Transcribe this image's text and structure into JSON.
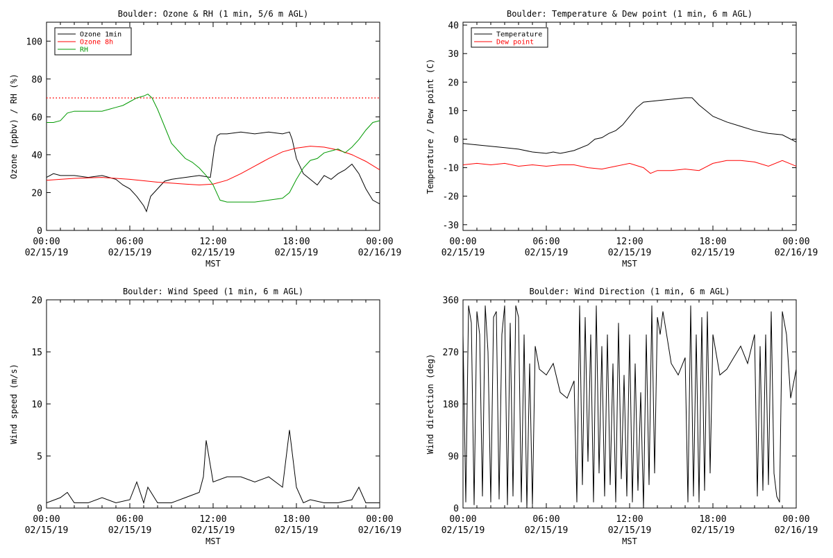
{
  "chart_data": [
    {
      "type": "line",
      "title": "Boulder: Ozone & RH (1 min, 5/6 m AGL)",
      "xlabel": "MST",
      "ylabel": "Ozone (ppbv) / RH (%)",
      "ylim": [
        0,
        110
      ],
      "yticks": [
        0,
        20,
        40,
        60,
        80,
        100
      ],
      "xlim": [
        0,
        24
      ],
      "xticks": [
        {
          "time": "00:00",
          "date": "02/15/19"
        },
        {
          "time": "06:00",
          "date": "02/15/19"
        },
        {
          "time": "12:00",
          "date": "02/15/19"
        },
        {
          "time": "18:00",
          "date": "02/15/19"
        },
        {
          "time": "00:00",
          "date": "02/16/19"
        }
      ],
      "legend_position": "top-left",
      "reference_line": {
        "y": 70,
        "color": "#ff0000",
        "style": "dotted"
      },
      "series": [
        {
          "name": "Ozone 1min",
          "color": "#000000",
          "x": [
            0,
            0.5,
            1,
            2,
            3,
            4,
            4.5,
            5,
            5.5,
            6,
            6.5,
            7,
            7.2,
            7.5,
            8,
            8.5,
            9,
            10,
            11,
            11.8,
            12.1,
            12.3,
            12.5,
            13,
            14,
            15,
            16,
            17,
            17.5,
            17.7,
            18,
            18.5,
            19,
            19.5,
            20,
            20.5,
            21,
            21.5,
            22,
            22.5,
            23,
            23.5,
            24
          ],
          "y": [
            28,
            30,
            29,
            29,
            28,
            29,
            28,
            27,
            24,
            22,
            18,
            13,
            10,
            18,
            22,
            26,
            27,
            28,
            29,
            28,
            44,
            50,
            51,
            51,
            52,
            51,
            52,
            51,
            52,
            48,
            38,
            30,
            27,
            24,
            29,
            27,
            30,
            32,
            35,
            30,
            22,
            16,
            14
          ]
        },
        {
          "name": "Ozone 8h",
          "color": "#ff0000",
          "x": [
            0,
            2,
            4,
            6,
            8,
            10,
            11,
            12,
            13,
            14,
            15,
            16,
            17,
            18,
            19,
            20,
            21,
            22,
            23,
            24
          ],
          "y": [
            26.5,
            27.5,
            28,
            27,
            25.5,
            24.5,
            24,
            24.5,
            26.5,
            30,
            34,
            38,
            41.5,
            43.5,
            44.5,
            44,
            42.5,
            40,
            36.5,
            32
          ]
        },
        {
          "name": "RH",
          "color": "#009900",
          "x": [
            0,
            0.5,
            1,
            1.5,
            2,
            3,
            4,
            4.5,
            5,
            5.5,
            6,
            6.5,
            7,
            7.3,
            7.6,
            8,
            8.5,
            9,
            9.5,
            10,
            10.5,
            11,
            11.5,
            12,
            12.5,
            13,
            14,
            15,
            16,
            17,
            17.5,
            18,
            18.5,
            19,
            19.5,
            20,
            20.5,
            21,
            21.5,
            22,
            22.5,
            23,
            23.5,
            24
          ],
          "y": [
            57,
            57,
            58,
            62,
            63,
            63,
            63,
            64,
            65,
            66,
            68,
            70,
            71,
            72,
            70,
            64,
            55,
            46,
            42,
            38,
            36,
            33,
            29,
            24,
            16,
            15,
            15,
            15,
            16,
            17,
            20,
            27,
            33,
            37,
            38,
            41,
            42,
            43,
            41,
            44,
            48,
            53,
            57,
            58
          ]
        }
      ]
    },
    {
      "type": "line",
      "title": "Boulder: Temperature & Dew point (1 min, 6 m AGL)",
      "xlabel": "MST",
      "ylabel": "Temperature / Dew point (C)",
      "ylim": [
        -32,
        41
      ],
      "yticks": [
        -30,
        -20,
        -10,
        0,
        10,
        20,
        30,
        40
      ],
      "xlim": [
        0,
        24
      ],
      "xticks": [
        {
          "time": "00:00",
          "date": "02/15/19"
        },
        {
          "time": "06:00",
          "date": "02/15/19"
        },
        {
          "time": "12:00",
          "date": "02/15/19"
        },
        {
          "time": "18:00",
          "date": "02/15/19"
        },
        {
          "time": "00:00",
          "date": "02/16/19"
        }
      ],
      "legend_position": "top-left",
      "series": [
        {
          "name": "Temperature",
          "color": "#000000",
          "x": [
            0,
            1,
            2,
            3,
            4,
            5,
            6,
            6.5,
            7,
            7.5,
            8,
            9,
            9.5,
            10,
            10.5,
            11,
            11.5,
            12,
            12.5,
            13,
            14,
            15,
            16,
            16.5,
            17,
            17.5,
            18,
            19,
            20,
            21,
            22,
            23,
            24
          ],
          "y": [
            -1.5,
            -2,
            -2.5,
            -3,
            -3.5,
            -4.5,
            -5,
            -4.5,
            -5,
            -4.5,
            -4,
            -2,
            0,
            0.5,
            2,
            3,
            5,
            8,
            11,
            13,
            13.5,
            14,
            14.5,
            14.5,
            12,
            10,
            8,
            6,
            4.5,
            3,
            2,
            1.5,
            -1
          ]
        },
        {
          "name": "Dew point",
          "color": "#ff0000",
          "x": [
            0,
            1,
            2,
            3,
            4,
            5,
            6,
            7,
            8,
            9,
            10,
            11,
            12,
            13,
            13.5,
            14,
            15,
            16,
            17,
            18,
            19,
            20,
            21,
            22,
            23,
            24
          ],
          "y": [
            -9,
            -8.5,
            -9,
            -8.5,
            -9.5,
            -9,
            -9.5,
            -9,
            -9,
            -10,
            -10.5,
            -9.5,
            -8.5,
            -10,
            -12,
            -11,
            -11,
            -10.5,
            -11,
            -8.5,
            -7.5,
            -7.5,
            -8,
            -9.5,
            -7.5,
            -9.5
          ]
        }
      ]
    },
    {
      "type": "line",
      "title": "Boulder: Wind Speed (1 min, 6 m AGL)",
      "xlabel": "MST",
      "ylabel": "Wind speed (m/s)",
      "ylim": [
        0,
        20
      ],
      "yticks": [
        0,
        5,
        10,
        15,
        20
      ],
      "xlim": [
        0,
        24
      ],
      "xticks": [
        {
          "time": "00:00",
          "date": "02/15/19"
        },
        {
          "time": "06:00",
          "date": "02/15/19"
        },
        {
          "time": "12:00",
          "date": "02/15/19"
        },
        {
          "time": "18:00",
          "date": "02/15/19"
        },
        {
          "time": "00:00",
          "date": "02/16/19"
        }
      ],
      "series": [
        {
          "name": "",
          "color": "#000000",
          "x": [
            0,
            1,
            1.5,
            2,
            3,
            4,
            5,
            6,
            6.5,
            7,
            7.3,
            8,
            9,
            10,
            11,
            11.3,
            11.5,
            12,
            13,
            14,
            15,
            16,
            17,
            17.5,
            18,
            18.5,
            19,
            20,
            21,
            22,
            22.5,
            23,
            24
          ],
          "y": [
            0.5,
            1,
            1.5,
            0.5,
            0.5,
            1,
            0.5,
            0.8,
            2.5,
            0.5,
            2,
            0.5,
            0.5,
            1,
            1.5,
            3,
            6.5,
            2.5,
            3,
            3,
            2.5,
            3,
            2,
            7.5,
            2,
            0.5,
            0.8,
            0.5,
            0.5,
            0.8,
            2,
            0.5,
            0.5
          ]
        }
      ]
    },
    {
      "type": "line",
      "title": "Boulder: Wind Direction (1 min, 6 m AGL)",
      "xlabel": "MST",
      "ylabel": "Wind direction (deg)",
      "ylim": [
        0,
        360
      ],
      "yticks": [
        0,
        90,
        180,
        270,
        360
      ],
      "xlim": [
        0,
        24
      ],
      "xticks": [
        {
          "time": "00:00",
          "date": "02/15/19"
        },
        {
          "time": "06:00",
          "date": "02/15/19"
        },
        {
          "time": "12:00",
          "date": "02/15/19"
        },
        {
          "time": "18:00",
          "date": "02/15/19"
        },
        {
          "time": "00:00",
          "date": "02/16/19"
        }
      ],
      "series": [
        {
          "name": "",
          "color": "#000000",
          "x": [
            0,
            0.2,
            0.4,
            0.6,
            0.8,
            1,
            1.2,
            1.4,
            1.6,
            1.8,
            2,
            2.2,
            2.4,
            2.6,
            2.8,
            3,
            3.2,
            3.4,
            3.6,
            3.8,
            4,
            4.2,
            4.4,
            4.6,
            4.8,
            5,
            5.2,
            5.5,
            6,
            6.5,
            7,
            7.5,
            8,
            8.2,
            8.4,
            8.6,
            8.8,
            9,
            9.2,
            9.4,
            9.6,
            9.8,
            10,
            10.2,
            10.4,
            10.6,
            10.8,
            11,
            11.2,
            11.4,
            11.6,
            11.8,
            12,
            12.2,
            12.4,
            12.6,
            12.8,
            13,
            13.2,
            13.4,
            13.6,
            13.8,
            14,
            14.2,
            14.4,
            14.6,
            14.8,
            15,
            15.5,
            16,
            16.2,
            16.4,
            16.6,
            16.8,
            17,
            17.2,
            17.4,
            17.6,
            17.8,
            18,
            18.5,
            19,
            19.5,
            20,
            20.5,
            21,
            21.2,
            21.4,
            21.6,
            21.8,
            22,
            22.2,
            22.4,
            22.6,
            22.8,
            23,
            23.3,
            23.6,
            24
          ],
          "y": [
            300,
            10,
            350,
            320,
            5,
            340,
            300,
            20,
            350,
            270,
            10,
            330,
            340,
            15,
            300,
            350,
            5,
            320,
            20,
            350,
            330,
            10,
            300,
            0,
            250,
            5,
            280,
            240,
            230,
            250,
            200,
            190,
            220,
            10,
            350,
            40,
            330,
            80,
            300,
            10,
            350,
            60,
            280,
            20,
            300,
            40,
            250,
            10,
            320,
            50,
            230,
            20,
            300,
            10,
            250,
            30,
            200,
            0,
            300,
            40,
            350,
            60,
            330,
            300,
            340,
            310,
            280,
            250,
            230,
            260,
            10,
            350,
            20,
            300,
            10,
            330,
            30,
            340,
            60,
            300,
            230,
            240,
            260,
            280,
            250,
            300,
            20,
            280,
            30,
            300,
            40,
            340,
            60,
            20,
            10,
            340,
            300,
            190,
            240
          ]
        }
      ]
    }
  ]
}
